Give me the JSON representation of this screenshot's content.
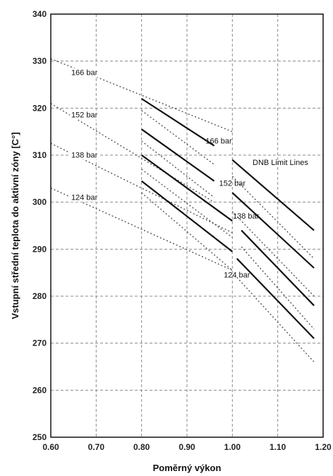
{
  "chart_data": {
    "type": "line",
    "xlabel": "Poměrný výkon",
    "ylabel": "Vstupní střední teplota do aktivní zóny [C°]",
    "xlim": [
      0.6,
      1.2
    ],
    "ylim": [
      250,
      340
    ],
    "x_ticks": [
      "0.60",
      "0.70",
      "0.80",
      "0.90",
      "1.00",
      "1.10",
      "1.20"
    ],
    "y_ticks": [
      "250",
      "260",
      "270",
      "280",
      "290",
      "300",
      "310",
      "320",
      "330",
      "340"
    ],
    "grid": true,
    "annotation": "DNB Limit Lines",
    "series": [
      {
        "name": "166 bar",
        "label_at": [
          0.97,
          312.5
        ],
        "solid": [
          [
            0.8,
            322
          ],
          [
            0.96,
            312
          ],
          [
            1.0,
            309
          ],
          [
            1.18,
            294
          ]
        ],
        "dotted": [
          [
            [
              0.6,
              330.5
            ],
            [
              1.0,
              315
            ]
          ],
          [
            [
              0.8,
              319.5
            ],
            [
              0.96,
              308
            ]
          ],
          [
            [
              1.0,
              305.5
            ],
            [
              1.18,
              288
            ]
          ]
        ]
      },
      {
        "name": "152 bar",
        "label_at": [
          1.0,
          303.5
        ],
        "solid": [
          [
            0.8,
            315.5
          ],
          [
            0.96,
            304.5
          ],
          [
            1.0,
            302
          ],
          [
            1.18,
            286
          ]
        ],
        "dotted": [
          [
            [
              0.6,
              321
            ],
            [
              0.96,
              300
            ]
          ],
          [
            [
              0.8,
              313
            ],
            [
              0.96,
              301
            ]
          ],
          [
            [
              1.0,
              298
            ],
            [
              1.18,
              280
            ]
          ]
        ]
      },
      {
        "name": "138 bar",
        "label_at": [
          1.03,
          296.5
        ],
        "solid": [
          [
            0.8,
            310
          ],
          [
            1.0,
            296
          ],
          [
            1.02,
            294
          ],
          [
            1.18,
            278
          ]
        ],
        "dotted": [
          [
            [
              0.6,
              312.5
            ],
            [
              1.0,
              293.5
            ]
          ],
          [
            [
              0.8,
              307
            ],
            [
              1.0,
              292.5
            ]
          ],
          [
            [
              1.02,
              290.5
            ],
            [
              1.18,
              273
            ]
          ]
        ]
      },
      {
        "name": "124 bar",
        "label_at": [
          1.01,
          284
        ],
        "solid": [
          [
            0.8,
            304.5
          ],
          [
            1.0,
            289.5
          ],
          [
            1.01,
            288
          ],
          [
            1.18,
            271
          ]
        ],
        "dotted": [
          [
            [
              0.6,
              303
            ],
            [
              1.0,
              285.5
            ]
          ],
          [
            [
              0.8,
              302
            ],
            [
              1.0,
              285.5
            ]
          ],
          [
            [
              1.01,
              284
            ],
            [
              1.18,
              266
            ]
          ]
        ]
      }
    ],
    "left_labels": [
      {
        "name": "166 bar",
        "at": [
          0.645,
          327
        ]
      },
      {
        "name": "152 bar",
        "at": [
          0.645,
          318
        ]
      },
      {
        "name": "138 bar",
        "at": [
          0.645,
          309.5
        ]
      },
      {
        "name": "124 bar",
        "at": [
          0.645,
          300.5
        ]
      }
    ]
  }
}
